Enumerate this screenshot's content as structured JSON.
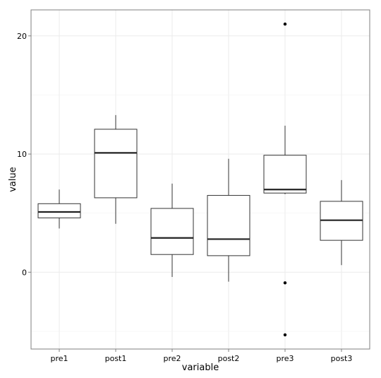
{
  "chart_data": {
    "type": "boxplot",
    "xlabel": "variable",
    "ylabel": "value",
    "ylim": [
      -6.5,
      22.2
    ],
    "yticks": [
      0,
      10,
      20
    ],
    "ytick_labels": [
      "0",
      "10",
      "20"
    ],
    "grid": true,
    "categories": [
      "pre1",
      "post1",
      "pre2",
      "post2",
      "pre3",
      "post3"
    ],
    "boxes": [
      {
        "category": "pre1",
        "whisker_low": 3.7,
        "q1": 4.6,
        "median": 5.1,
        "q3": 5.8,
        "whisker_high": 7.0,
        "outliers": []
      },
      {
        "category": "post1",
        "whisker_low": 4.1,
        "q1": 6.3,
        "median": 10.1,
        "q3": 12.1,
        "whisker_high": 13.3,
        "outliers": []
      },
      {
        "category": "pre2",
        "whisker_low": -0.4,
        "q1": 1.5,
        "median": 2.9,
        "q3": 5.4,
        "whisker_high": 7.5,
        "outliers": []
      },
      {
        "category": "post2",
        "whisker_low": -0.8,
        "q1": 1.4,
        "median": 2.8,
        "q3": 6.5,
        "whisker_high": 9.6,
        "outliers": []
      },
      {
        "category": "pre3",
        "whisker_low": 6.6,
        "q1": 6.7,
        "median": 7.0,
        "q3": 9.9,
        "whisker_high": 12.4,
        "outliers": [
          21.0,
          -0.9,
          -5.3
        ]
      },
      {
        "category": "post3",
        "whisker_low": 0.6,
        "q1": 2.7,
        "median": 4.4,
        "q3": 6.0,
        "whisker_high": 7.8,
        "outliers": []
      }
    ]
  }
}
